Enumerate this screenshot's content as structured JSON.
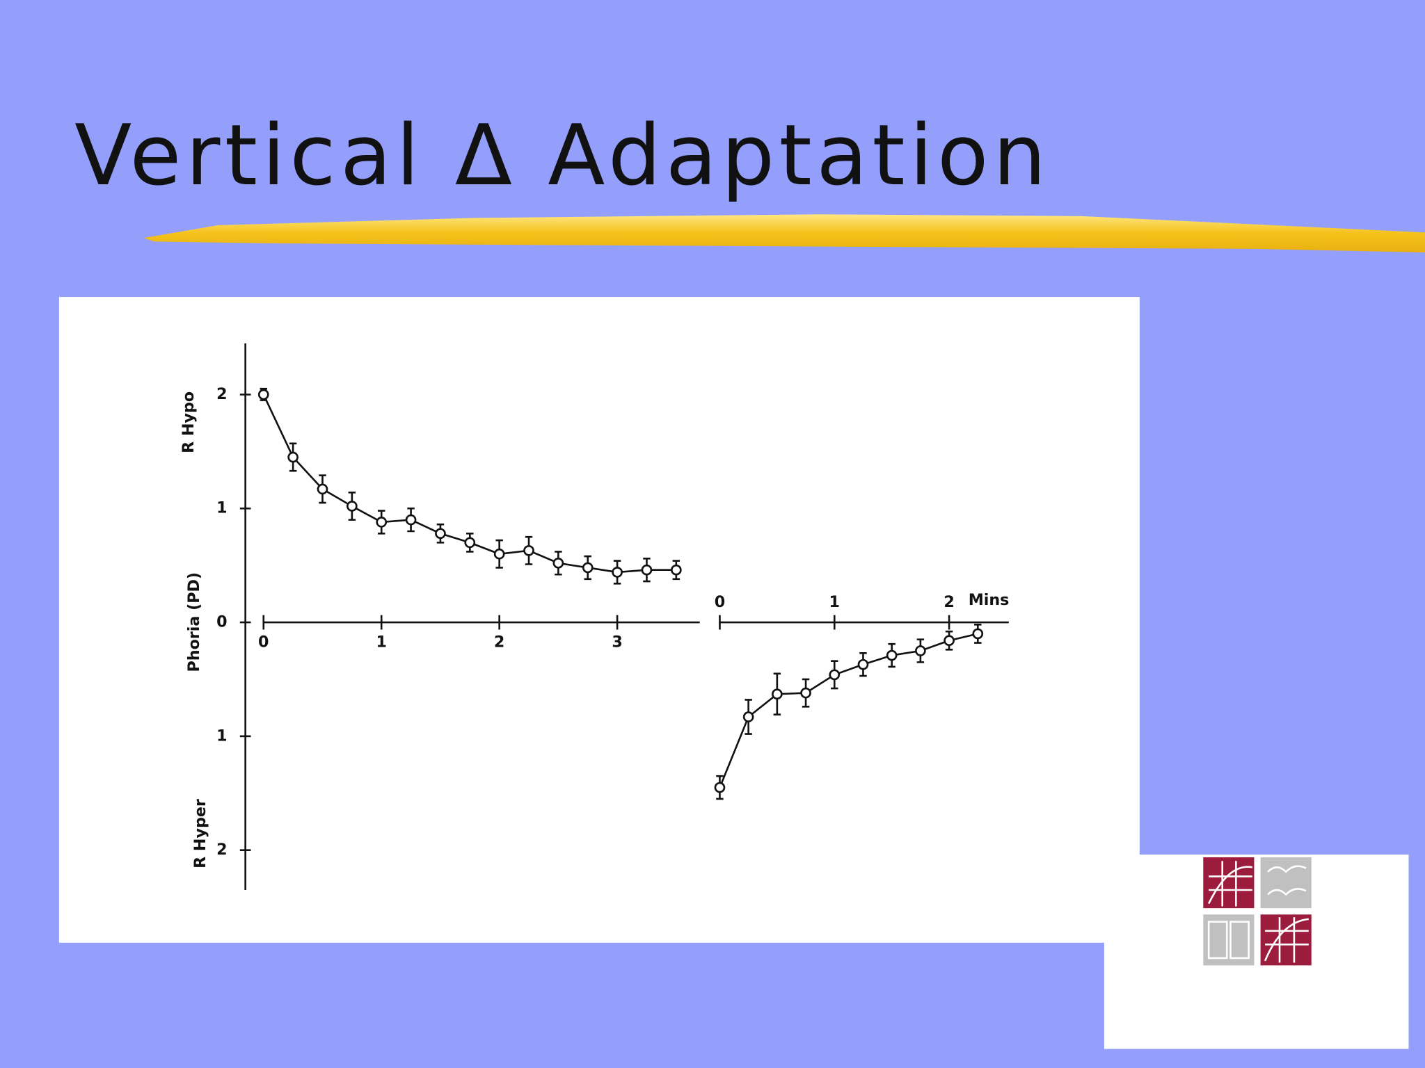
{
  "chart_data": [
    {
      "type": "line",
      "title": "Vertical Δ Adaptation",
      "ylabel_top": "R Hypo",
      "ylabel": "Phoria (PD)",
      "ylabel_bottom": "R Hyper",
      "ylim": [
        -2.35,
        2.45
      ],
      "yticks": [
        2,
        1,
        0,
        {
          "value": -1,
          "label": "1"
        },
        {
          "value": -2,
          "label": "2"
        }
      ],
      "xlim": [
        0,
        3.7
      ],
      "xticks": [
        0,
        1,
        2,
        3
      ],
      "series": [
        {
          "color": "#111111",
          "x": [
            0,
            0.25,
            0.5,
            0.75,
            1,
            1.25,
            1.5,
            1.75,
            2,
            2.25,
            2.5,
            2.75,
            3,
            3.25,
            3.5
          ],
          "values": [
            2.0,
            1.45,
            1.17,
            1.02,
            0.88,
            0.9,
            0.78,
            0.7,
            0.6,
            0.63,
            0.52,
            0.48,
            0.44,
            0.46,
            0.46
          ],
          "errors": [
            0.05,
            0.12,
            0.12,
            0.12,
            0.1,
            0.1,
            0.08,
            0.08,
            0.12,
            0.12,
            0.1,
            0.1,
            0.1,
            0.1,
            0.08
          ]
        }
      ]
    },
    {
      "type": "line",
      "xlabel": "Mins",
      "ylim": [
        -2.35,
        2.45
      ],
      "xlim": [
        0,
        2.52
      ],
      "xticks": [
        0,
        1,
        2
      ],
      "series": [
        {
          "color": "#111111",
          "x": [
            0,
            0.25,
            0.5,
            0.75,
            1,
            1.25,
            1.5,
            1.75,
            2,
            2.25
          ],
          "values": [
            -1.45,
            -0.83,
            -0.63,
            -0.62,
            -0.46,
            -0.37,
            -0.29,
            -0.25,
            -0.16,
            -0.1
          ],
          "errors": [
            0.1,
            0.15,
            0.18,
            0.12,
            0.12,
            0.1,
            0.1,
            0.1,
            0.08,
            0.08
          ]
        }
      ]
    }
  ]
}
